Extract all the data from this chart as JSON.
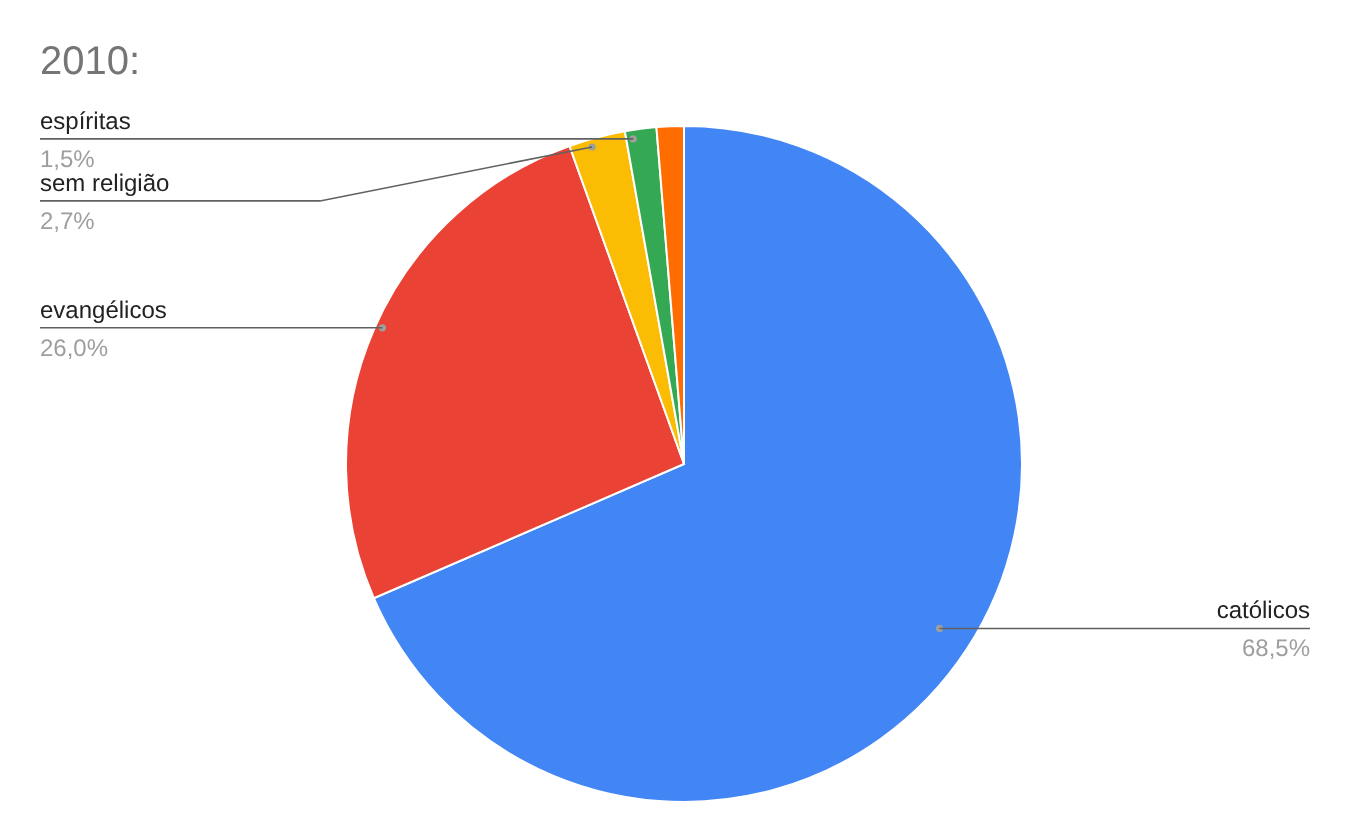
{
  "chart_data": {
    "type": "pie",
    "title": "2010:",
    "categories": [
      "católicos",
      "evangélicos",
      "sem religião",
      "espíritas",
      null
    ],
    "values": [
      68.5,
      26.0,
      2.7,
      1.5,
      1.3
    ],
    "colors": [
      "#4285f4",
      "#ea4335",
      "#fbbc04",
      "#34a853",
      "#ff6d01"
    ],
    "value_labels": [
      "68,5%",
      "26,0%",
      "2,7%",
      "1,5%",
      null
    ],
    "legend": false
  }
}
